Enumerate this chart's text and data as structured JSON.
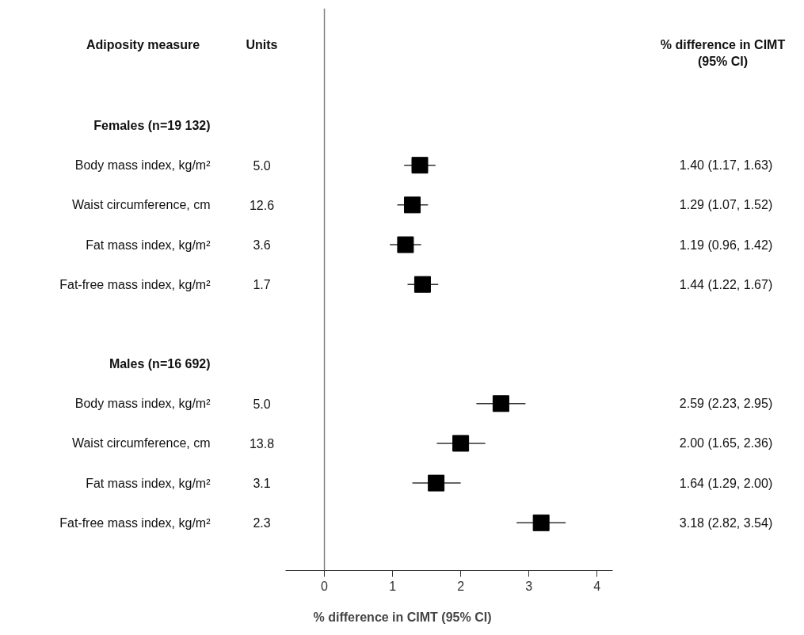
{
  "chart_data": {
    "type": "scatter",
    "orientation": "horizontal",
    "marker": "square",
    "grid": false,
    "legend": false,
    "xlabel": "% difference in CIMT (95% CI)",
    "categories": [
      "Females (n=19 132)",
      "Body mass index, kg/m²",
      "Waist circumference, cm",
      "Fat mass index, kg/m²",
      "Fat-free mass index, kg/m²",
      null,
      "Males (n=16 692)",
      "Body mass index, kg/m²",
      "Waist circumference, cm",
      "Fat mass index, kg/m²",
      "Fat-free mass index, kg/m²"
    ],
    "values": [
      null,
      1.4,
      1.29,
      1.19,
      1.44,
      null,
      null,
      2.59,
      2.0,
      1.64,
      3.18
    ],
    "errors": [
      null,
      [
        1.17,
        1.63
      ],
      [
        1.07,
        1.52
      ],
      [
        0.96,
        1.42
      ],
      [
        1.22,
        1.67
      ],
      null,
      null,
      [
        2.23,
        2.95
      ],
      [
        1.65,
        2.36
      ],
      [
        1.29,
        2.0
      ],
      [
        2.82,
        3.54
      ]
    ],
    "value_labels": [
      null,
      "1.40 (1.17, 1.63)",
      "1.29 (1.07, 1.52)",
      "1.19 (0.96, 1.42)",
      "1.44 (1.22, 1.67)",
      null,
      null,
      "2.59 (2.23, 2.95)",
      "2.00 (1.65, 2.36)",
      "1.64 (1.29, 2.00)",
      "3.18 (2.82, 3.54)"
    ],
    "color": "#000000",
    "xlim": [
      -0.57,
      4.23
    ],
    "xticks": [
      0,
      1,
      2,
      3,
      4
    ],
    "ref_lines": [
      {
        "axis": "x",
        "value": 0,
        "color": "#808080"
      }
    ],
    "annotations": [
      "Adiposity measure",
      "Units",
      "% difference in CIMT\n(95% CI)",
      "5.0",
      "12.6",
      "3.6",
      "1.7",
      "5.0",
      "13.8",
      "3.1",
      "2.3"
    ]
  }
}
